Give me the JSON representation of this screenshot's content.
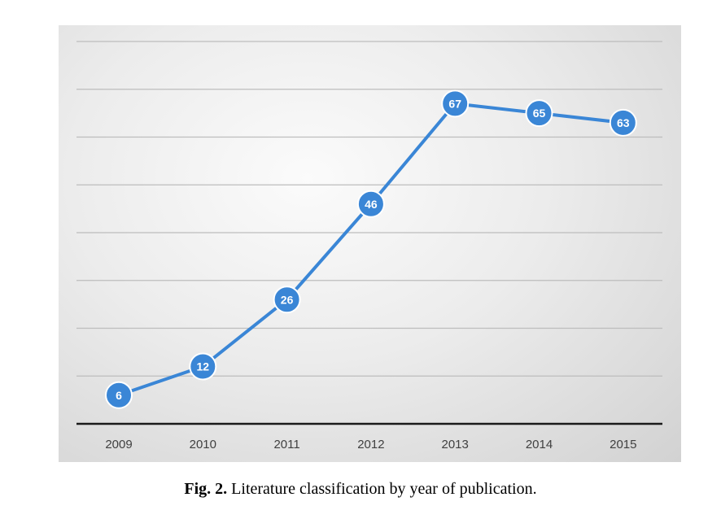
{
  "chart_data": {
    "type": "line",
    "categories": [
      "2009",
      "2010",
      "2011",
      "2012",
      "2013",
      "2014",
      "2015"
    ],
    "series": [
      {
        "values": [
          6,
          12,
          26,
          46,
          67,
          65,
          63
        ]
      }
    ],
    "data_labels": [
      "6",
      "12",
      "26",
      "46",
      "67",
      "65",
      "63"
    ],
    "ylim": [
      0,
      80
    ],
    "y_gridline_step": 10,
    "grid": true,
    "legend": "none",
    "line_color": "#3a86d6",
    "marker_color": "#3a86d6"
  },
  "caption": {
    "label": "Fig. 2.",
    "text": " Literature classification by year of publication."
  }
}
